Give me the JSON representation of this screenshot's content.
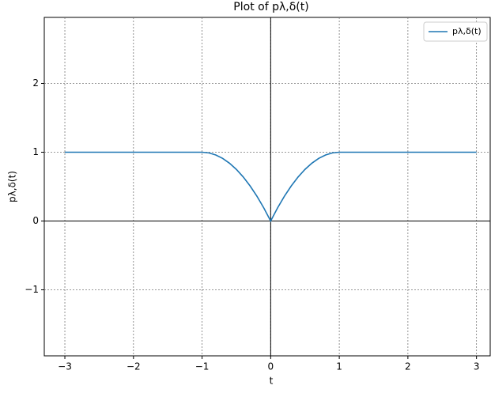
{
  "chart_data": {
    "type": "line",
    "title": "Plot of pλ,δ(t)",
    "xlabel": "t",
    "ylabel": "pλ,δ(t)",
    "x": [
      -3,
      -2,
      -1,
      -0.9,
      -0.8,
      -0.7,
      -0.6,
      -0.5,
      -0.4,
      -0.3,
      -0.2,
      -0.1,
      0,
      0.1,
      0.2,
      0.3,
      0.4,
      0.5,
      0.6,
      0.7,
      0.8,
      0.9,
      1,
      2,
      3
    ],
    "series": [
      {
        "name": "pλ,δ(t)",
        "color": "#1f77b4",
        "values": [
          1,
          1,
          1,
          0.99,
          0.96,
          0.91,
          0.84,
          0.75,
          0.64,
          0.51,
          0.36,
          0.19,
          0,
          0.19,
          0.36,
          0.51,
          0.64,
          0.75,
          0.84,
          0.91,
          0.96,
          0.99,
          1,
          1,
          1
        ]
      }
    ],
    "xlim": [
      -3.3,
      3.2
    ],
    "ylim": [
      -1.96,
      2.96
    ],
    "xticks": [
      {
        "value": -3,
        "label": "−3"
      },
      {
        "value": -2,
        "label": "−2"
      },
      {
        "value": -1,
        "label": "−1"
      },
      0,
      1,
      2,
      3
    ],
    "yticks": [
      {
        "value": -1,
        "label": "−1"
      },
      0,
      1,
      2
    ],
    "grid": true,
    "legend": "upper right"
  }
}
